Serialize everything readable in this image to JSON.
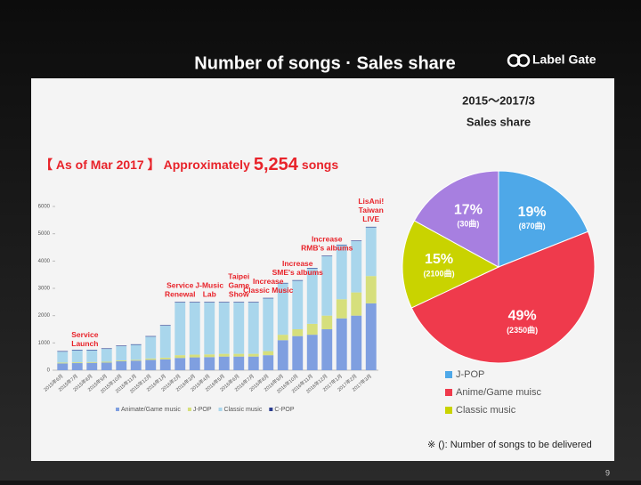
{
  "header": {
    "title": "Number of songs · Sales share",
    "logo": "Label Gate"
  },
  "note": "※ (): Number of songs to be delivered",
  "page_number": "9",
  "chart_data": [
    {
      "type": "bar",
      "stacked": true,
      "headline": [
        "【 As of Mar 2017 】",
        "Approximately",
        "5,254",
        "songs"
      ],
      "categories": [
        "2015年6月",
        "2015年7月",
        "2015年8月",
        "2015年9月",
        "2015年10月",
        "2015年11月",
        "2015年12月",
        "2016年1月",
        "2016年2月",
        "2016年3月",
        "2016年4月",
        "2016年5月",
        "2016年6月",
        "2016年7月",
        "2016年8月",
        "2016年9月",
        "2016年10月",
        "2016年11月",
        "2016年12月",
        "2017年1月",
        "2017年2月",
        "2017年3月"
      ],
      "series": [
        {
          "name": "Animate/Game music",
          "color": "#7f9fe0",
          "values": [
            250,
            260,
            270,
            280,
            330,
            350,
            380,
            400,
            450,
            470,
            480,
            500,
            500,
            500,
            550,
            1100,
            1250,
            1300,
            1500,
            1900,
            2000,
            2450
          ]
        },
        {
          "name": "J-POP",
          "color": "#d6df7c",
          "values": [
            30,
            30,
            30,
            30,
            30,
            30,
            50,
            60,
            100,
            100,
            100,
            100,
            100,
            100,
            150,
            200,
            250,
            400,
            500,
            700,
            850,
            1000
          ]
        },
        {
          "name": "Classic music",
          "color": "#a9d6ec",
          "values": [
            400,
            440,
            430,
            470,
            520,
            550,
            800,
            1170,
            1930,
            1910,
            1900,
            1880,
            1880,
            1880,
            1930,
            1880,
            1780,
            2030,
            2180,
            1980,
            1880,
            1784
          ]
        },
        {
          "name": "C-POP",
          "color": "#2b3d8f",
          "values": [
            20,
            20,
            20,
            20,
            20,
            20,
            20,
            20,
            20,
            20,
            20,
            20,
            20,
            20,
            20,
            20,
            20,
            20,
            20,
            20,
            20,
            20
          ]
        }
      ],
      "ylim": [
        0,
        6000
      ],
      "yticks": [
        0,
        1000,
        2000,
        3000,
        4000,
        5000,
        6000
      ],
      "grid": false,
      "annotations": [
        {
          "at": "2015年6月",
          "lines": [
            "Service",
            "Launch"
          ]
        },
        {
          "at": "2016年2月",
          "lines": [
            "Service",
            "Renewal"
          ]
        },
        {
          "at": "2016年4月",
          "lines": [
            "J-Music",
            "Lab"
          ]
        },
        {
          "at": "2016年6月",
          "lines": [
            "Taipei",
            "Game",
            "Show"
          ]
        },
        {
          "at": "2016年8月",
          "lines": [
            "Increase",
            "Classic Music"
          ]
        },
        {
          "at": "2016年10月",
          "lines": [
            "Increase",
            "SME's albums"
          ]
        },
        {
          "at": "2016年12月",
          "lines": [
            "Increase",
            "RMB's albums"
          ]
        },
        {
          "at": "2017年3月",
          "lines": [
            "LisAni!",
            "Taiwan",
            "LIVE"
          ]
        }
      ]
    },
    {
      "type": "pie",
      "title": "2015～2017/3",
      "subtitle": "Sales share",
      "categories": [
        "J-POP",
        "Anime/Game muisc",
        "Classic music",
        null
      ],
      "values": [
        19,
        49,
        15,
        17
      ],
      "value_labels": [
        "19%",
        "49%",
        "15%",
        "17%"
      ],
      "sublabels": [
        "(870曲)",
        "(2350曲)",
        "(2100曲)",
        "(30曲)"
      ],
      "colors": [
        "#4ea8e8",
        "#ef3a4c",
        "#c9d300",
        "#a77fe0"
      ]
    }
  ]
}
